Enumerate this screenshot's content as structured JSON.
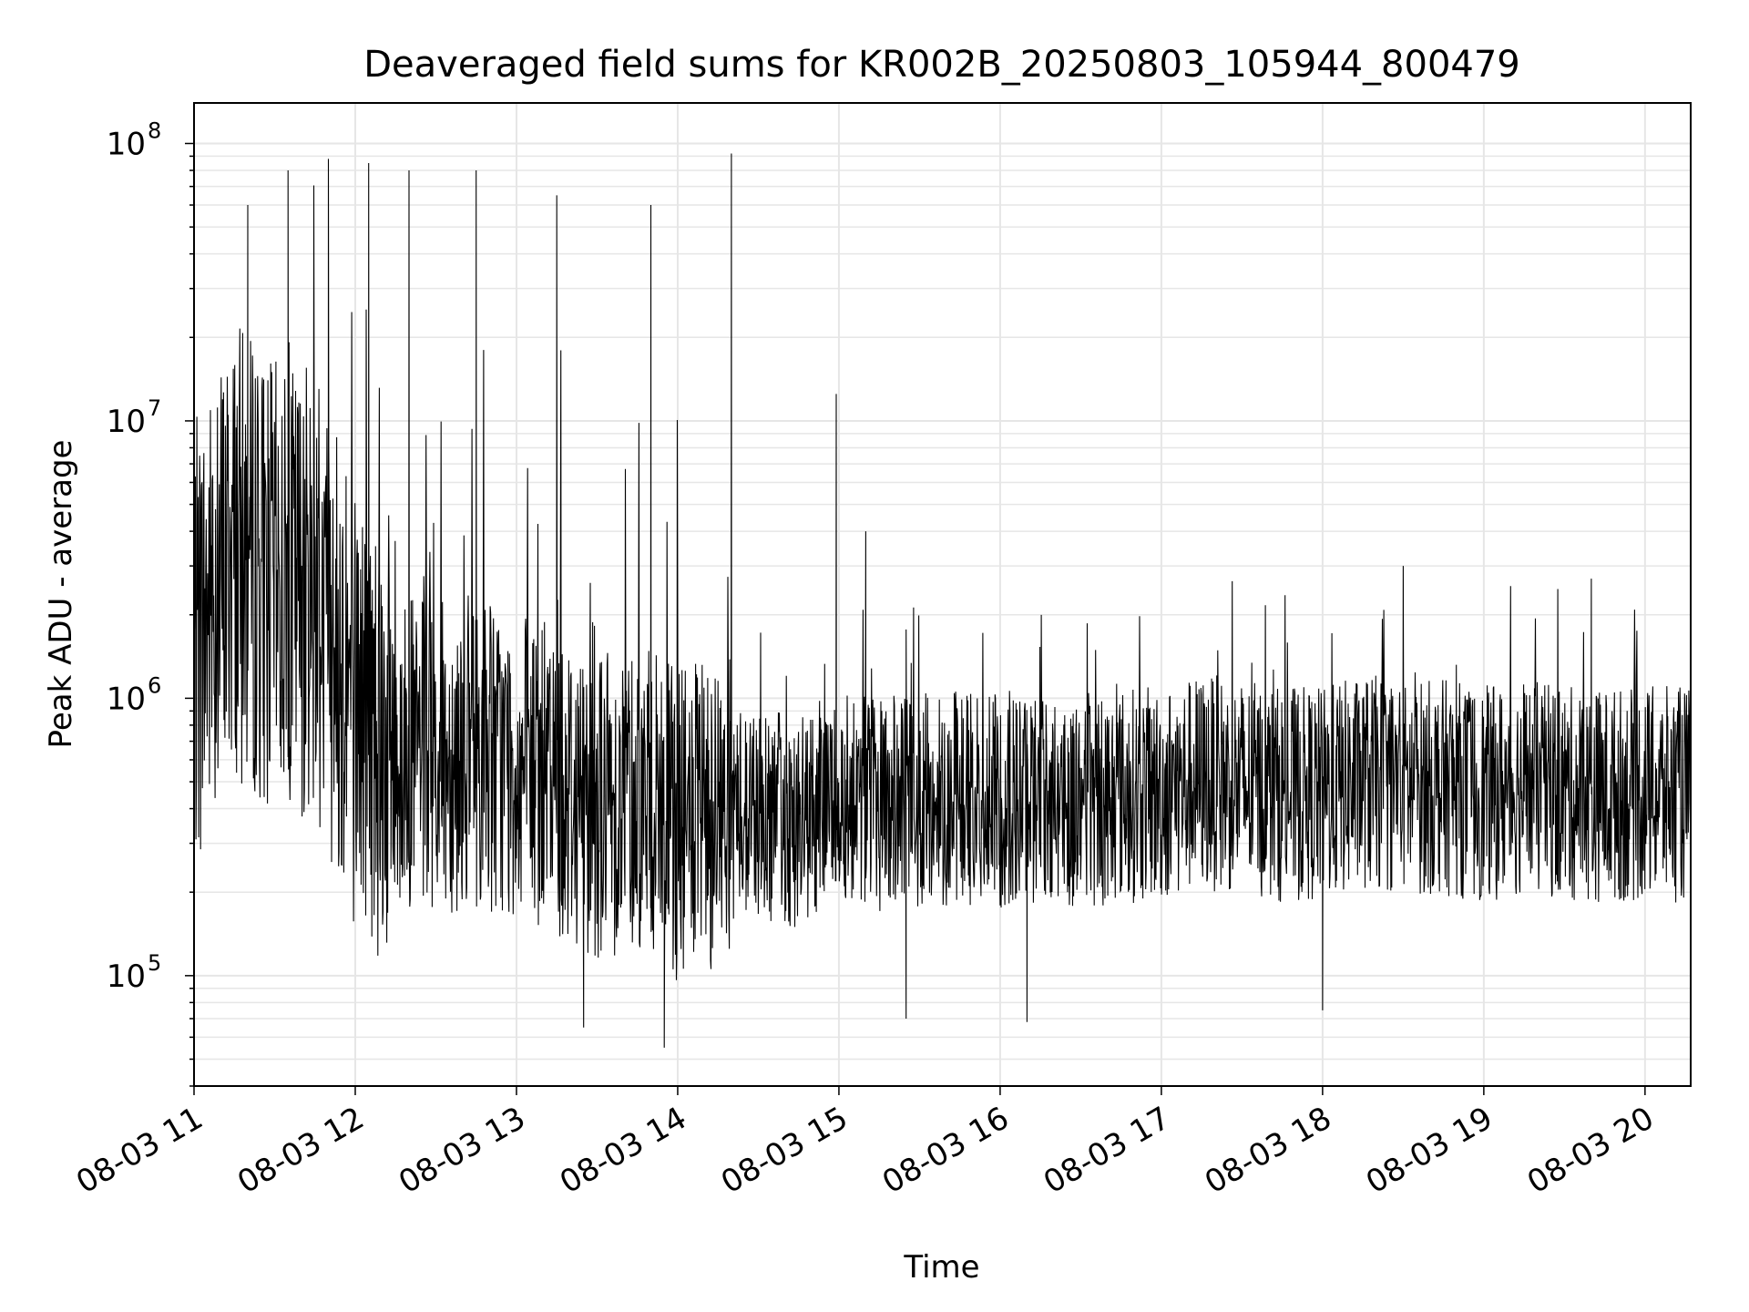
{
  "chart_data": {
    "type": "line",
    "title": "Deaveraged field sums for KR002B_20250803_105944_800479",
    "xlabel": "Time",
    "ylabel": "Peak ADU - average",
    "xscale": "time",
    "yscale": "log",
    "xlim": [
      "2025-08-03 11:00",
      "2025-08-03 20:17"
    ],
    "ylim": [
      40000,
      140000000
    ],
    "grid": true,
    "legend": "none",
    "line_color": "#000000",
    "grid_color": "#e6e6e6",
    "x_ticks": [
      "08-03 11",
      "08-03 12",
      "08-03 13",
      "08-03 14",
      "08-03 15",
      "08-03 16",
      "08-03 17",
      "08-03 18",
      "08-03 19",
      "08-03 20"
    ],
    "y_ticks": [
      {
        "value": 100000,
        "base": "10",
        "exp": "5"
      },
      {
        "value": 1000000,
        "base": "10",
        "exp": "6"
      },
      {
        "value": 10000000,
        "base": "10",
        "exp": "7"
      },
      {
        "value": 100000000,
        "base": "10",
        "exp": "8"
      }
    ],
    "series": [
      {
        "x": [
          "2025-08-03 11:00",
          "2025-08-03 11:15",
          "2025-08-03 11:30",
          "2025-08-03 11:45",
          "2025-08-03 12:00",
          "2025-08-03 12:15",
          "2025-08-03 12:30",
          "2025-08-03 12:45",
          "2025-08-03 13:00",
          "2025-08-03 13:15",
          "2025-08-03 13:30",
          "2025-08-03 13:45",
          "2025-08-03 14:00",
          "2025-08-03 14:15",
          "2025-08-03 14:30",
          "2025-08-03 14:45",
          "2025-08-03 15:00",
          "2025-08-03 15:15",
          "2025-08-03 15:30",
          "2025-08-03 15:45",
          "2025-08-03 16:00",
          "2025-08-03 16:15",
          "2025-08-03 16:30",
          "2025-08-03 16:45",
          "2025-08-03 17:00",
          "2025-08-03 17:15",
          "2025-08-03 17:30",
          "2025-08-03 17:45",
          "2025-08-03 18:00",
          "2025-08-03 18:15",
          "2025-08-03 18:30",
          "2025-08-03 18:45",
          "2025-08-03 19:00",
          "2025-08-03 19:15",
          "2025-08-03 19:30",
          "2025-08-03 19:45",
          "2025-08-03 20:00",
          "2025-08-03 20:15"
        ],
        "y": [
          1500000,
          3500000,
          2500000,
          2500000,
          1000000,
          650000,
          600000,
          650000,
          550000,
          500000,
          420000,
          450000,
          350000,
          380000,
          400000,
          350000,
          450000,
          420000,
          420000,
          450000,
          420000,
          450000,
          420000,
          450000,
          450000,
          500000,
          480000,
          450000,
          450000,
          500000,
          480000,
          480000,
          450000,
          480000,
          450000,
          450000,
          450000,
          450000
        ],
        "peaks": [
          {
            "x": "2025-08-03 11:20",
            "y": 60000000
          },
          {
            "x": "2025-08-03 11:35",
            "y": 80000000
          },
          {
            "x": "2025-08-03 11:50",
            "y": 88000000
          },
          {
            "x": "2025-08-03 12:05",
            "y": 85000000
          },
          {
            "x": "2025-08-03 12:20",
            "y": 80000000
          },
          {
            "x": "2025-08-03 12:45",
            "y": 80000000
          },
          {
            "x": "2025-08-03 13:15",
            "y": 65000000
          },
          {
            "x": "2025-08-03 13:50",
            "y": 60000000
          },
          {
            "x": "2025-08-03 14:20",
            "y": 92000000
          },
          {
            "x": "2025-08-03 14:59",
            "y": 12500000
          },
          {
            "x": "2025-08-03 15:10",
            "y": 4000000
          },
          {
            "x": "2025-08-03 18:30",
            "y": 3000000
          },
          {
            "x": "2025-08-03 19:40",
            "y": 2700000
          }
        ],
        "troughs": [
          {
            "x": "2025-08-03 13:25",
            "y": 65000
          },
          {
            "x": "2025-08-03 13:55",
            "y": 55000
          },
          {
            "x": "2025-08-03 15:25",
            "y": 70000
          },
          {
            "x": "2025-08-03 16:10",
            "y": 68000
          },
          {
            "x": "2025-08-03 18:00",
            "y": 75000
          }
        ]
      }
    ]
  }
}
